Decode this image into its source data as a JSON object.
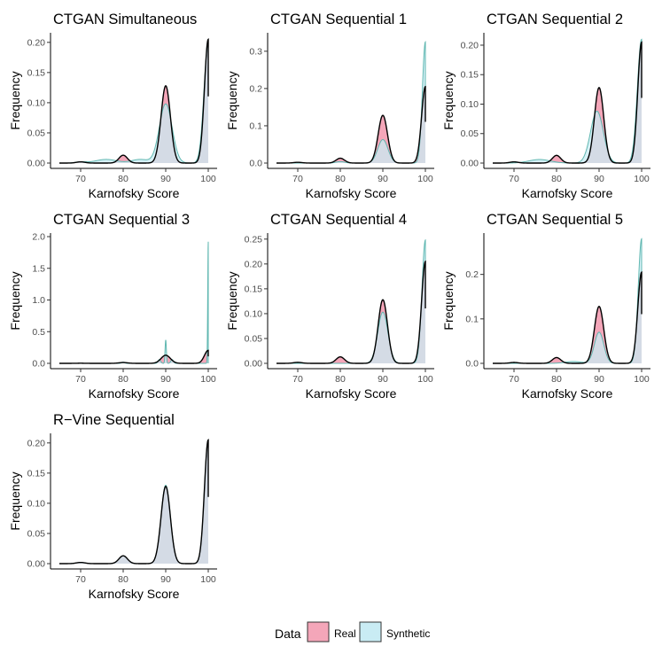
{
  "chart_data": {
    "type": "area",
    "colors": {
      "real": "#f4a6b9",
      "synthetic": "#c9ecf4",
      "outline": "#000000",
      "synthetic_line": "#5fb7b0",
      "tick": "#4d4d4d"
    },
    "legend": {
      "title": "Data",
      "entries": [
        {
          "label": "Real",
          "color": "#f4a6b9"
        },
        {
          "label": "Synthetic",
          "color": "#c9ecf4"
        }
      ],
      "position": "bottom"
    },
    "xlabel": "Karnofsky Score",
    "ylabel": "Frequency",
    "xlim": [
      65,
      101
    ],
    "xticks": [
      70,
      80,
      90,
      100
    ],
    "real_distribution": {
      "components": [
        {
          "mu": 70,
          "sigma": 1.0,
          "height": 0.002
        },
        {
          "mu": 80,
          "sigma": 1.0,
          "height": 0.013
        },
        {
          "mu": 90,
          "sigma": 1.1,
          "height": 0.128
        },
        {
          "mu": 100,
          "sigma": 0.9,
          "height": 0.205
        }
      ]
    },
    "panels": [
      {
        "title": "CTGAN Simultaneous",
        "ylim": [
          0,
          0.21
        ],
        "yticks": [
          0.0,
          0.05,
          0.1,
          0.15,
          0.2
        ],
        "ytick_labels": [
          "0.00",
          "0.05",
          "0.10",
          "0.15",
          "0.20"
        ],
        "synthetic_components": [
          {
            "mu": 70,
            "sigma": 1.2,
            "height": 0.002
          },
          {
            "mu": 76,
            "sigma": 2.5,
            "height": 0.006
          },
          {
            "mu": 84,
            "sigma": 2.0,
            "height": 0.006
          },
          {
            "mu": 90,
            "sigma": 1.5,
            "height": 0.098
          },
          {
            "mu": 100,
            "sigma": 1.0,
            "height": 0.198
          }
        ]
      },
      {
        "title": "CTGAN Sequential 1",
        "ylim": [
          0,
          0.34
        ],
        "yticks": [
          0.0,
          0.1,
          0.2,
          0.3
        ],
        "ytick_labels": [
          "0.0",
          "0.1",
          "0.2",
          "0.3"
        ],
        "synthetic_components": [
          {
            "mu": 80,
            "sigma": 1.0,
            "height": 0.004
          },
          {
            "mu": 90,
            "sigma": 1.2,
            "height": 0.063
          },
          {
            "mu": 100,
            "sigma": 0.7,
            "height": 0.325
          }
        ]
      },
      {
        "title": "CTGAN Sequential 2",
        "ylim": [
          0,
          0.215
        ],
        "yticks": [
          0.0,
          0.05,
          0.1,
          0.15,
          0.2
        ],
        "ytick_labels": [
          "0.00",
          "0.05",
          "0.10",
          "0.15",
          "0.20"
        ],
        "synthetic_components": [
          {
            "mu": 76,
            "sigma": 2.5,
            "height": 0.006
          },
          {
            "mu": 89.5,
            "sigma": 1.5,
            "height": 0.088
          },
          {
            "mu": 100,
            "sigma": 1.0,
            "height": 0.21
          }
        ]
      },
      {
        "title": "CTGAN Sequential 3",
        "ylim": [
          0,
          2.0
        ],
        "yticks": [
          0.0,
          0.5,
          1.0,
          1.5,
          2.0
        ],
        "ytick_labels": [
          "0.0",
          "0.5",
          "1.0",
          "1.5",
          "2.0"
        ],
        "synthetic_components": [
          {
            "mu": 80,
            "sigma": 0.3,
            "height": 0.02
          },
          {
            "mu": 88.5,
            "sigma": 0.3,
            "height": 0.06
          },
          {
            "mu": 90,
            "sigma": 0.15,
            "height": 0.37
          },
          {
            "mu": 91.5,
            "sigma": 0.3,
            "height": 0.06
          },
          {
            "mu": 100,
            "sigma": 0.12,
            "height": 1.92
          }
        ]
      },
      {
        "title": "CTGAN Sequential 4",
        "ylim": [
          0,
          0.255
        ],
        "yticks": [
          0.0,
          0.05,
          0.1,
          0.15,
          0.2,
          0.25
        ],
        "ytick_labels": [
          "0.00",
          "0.05",
          "0.10",
          "0.15",
          "0.20",
          "0.25"
        ],
        "synthetic_components": [
          {
            "mu": 90,
            "sigma": 1.2,
            "height": 0.103
          },
          {
            "mu": 100,
            "sigma": 0.8,
            "height": 0.248
          }
        ]
      },
      {
        "title": "CTGAN Sequential 5",
        "ylim": [
          0,
          0.285
        ],
        "yticks": [
          0.0,
          0.1,
          0.2
        ],
        "ytick_labels": [
          "0.0",
          "0.1",
          "0.2"
        ],
        "synthetic_components": [
          {
            "mu": 84,
            "sigma": 2.0,
            "height": 0.004
          },
          {
            "mu": 90,
            "sigma": 1.1,
            "height": 0.07
          },
          {
            "mu": 100,
            "sigma": 0.8,
            "height": 0.28
          }
        ]
      },
      {
        "title": "R−Vine Sequential",
        "ylim": [
          0,
          0.21
        ],
        "yticks": [
          0.0,
          0.05,
          0.1,
          0.15,
          0.2
        ],
        "ytick_labels": [
          "0.00",
          "0.05",
          "0.10",
          "0.15",
          "0.20"
        ],
        "synthetic_components": [
          {
            "mu": 70,
            "sigma": 1.0,
            "height": 0.002
          },
          {
            "mu": 80,
            "sigma": 1.0,
            "height": 0.013
          },
          {
            "mu": 90,
            "sigma": 1.1,
            "height": 0.13
          },
          {
            "mu": 100,
            "sigma": 0.9,
            "height": 0.205
          }
        ]
      }
    ]
  }
}
